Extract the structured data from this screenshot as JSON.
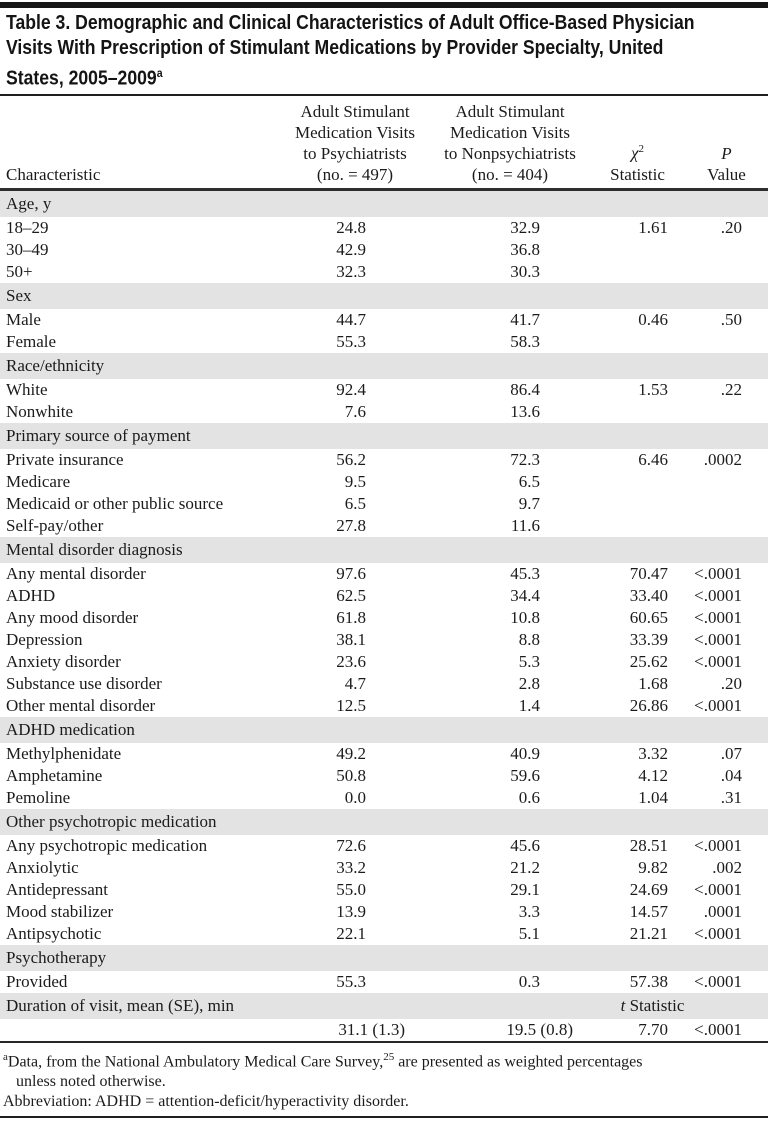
{
  "table": {
    "title_lines": [
      "Table 3. Demographic and Clinical Characteristics of Adult Office-Based Physician",
      "Visits With Prescription of Stimulant Medications by Provider Specialty, United",
      "States, 2005–2009"
    ],
    "title_footnote_marker": "a",
    "columns": {
      "characteristic": "Characteristic",
      "psychiatrists_lines": [
        "Adult Stimulant",
        "Medication Visits",
        "to Psychiatrists",
        "(no. = 497)"
      ],
      "nonpsychiatrists_lines": [
        "Adult Stimulant",
        "Medication Visits",
        "to Nonpsychiatrists",
        "(no. = 404)"
      ],
      "chi_symbol": "χ",
      "chi_sup": "2",
      "chi_line2": "Statistic",
      "p_symbol": "P",
      "p_line2": "Value"
    },
    "sections": [
      {
        "header": "Age, y",
        "rows": [
          {
            "label": "18–29",
            "psychiatrists": "24.8",
            "nonpsychiatrists": "32.9",
            "statistic": "1.61",
            "p_value": ".20"
          },
          {
            "label": "30–49",
            "psychiatrists": "42.9",
            "nonpsychiatrists": "36.8",
            "statistic": "",
            "p_value": ""
          },
          {
            "label": "50+",
            "psychiatrists": "32.3",
            "nonpsychiatrists": "30.3",
            "statistic": "",
            "p_value": ""
          }
        ]
      },
      {
        "header": "Sex",
        "rows": [
          {
            "label": "Male",
            "psychiatrists": "44.7",
            "nonpsychiatrists": "41.7",
            "statistic": "0.46",
            "p_value": ".50"
          },
          {
            "label": "Female",
            "psychiatrists": "55.3",
            "nonpsychiatrists": "58.3",
            "statistic": "",
            "p_value": ""
          }
        ]
      },
      {
        "header": "Race/ethnicity",
        "rows": [
          {
            "label": "White",
            "psychiatrists": "92.4",
            "nonpsychiatrists": "86.4",
            "statistic": "1.53",
            "p_value": ".22"
          },
          {
            "label": "Nonwhite",
            "psychiatrists": "7.6",
            "nonpsychiatrists": "13.6",
            "statistic": "",
            "p_value": ""
          }
        ]
      },
      {
        "header": "Primary source of payment",
        "rows": [
          {
            "label": "Private insurance",
            "psychiatrists": "56.2",
            "nonpsychiatrists": "72.3",
            "statistic": "6.46",
            "p_value": ".0002"
          },
          {
            "label": "Medicare",
            "psychiatrists": "9.5",
            "nonpsychiatrists": "6.5",
            "statistic": "",
            "p_value": ""
          },
          {
            "label": "Medicaid or other public source",
            "psychiatrists": "6.5",
            "nonpsychiatrists": "9.7",
            "statistic": "",
            "p_value": ""
          },
          {
            "label": "Self-pay/other",
            "psychiatrists": "27.8",
            "nonpsychiatrists": "11.6",
            "statistic": "",
            "p_value": ""
          }
        ]
      },
      {
        "header": "Mental disorder diagnosis",
        "rows": [
          {
            "label": "Any mental disorder",
            "psychiatrists": "97.6",
            "nonpsychiatrists": "45.3",
            "statistic": "70.47",
            "p_value": "<.0001"
          },
          {
            "label": "ADHD",
            "psychiatrists": "62.5",
            "nonpsychiatrists": "34.4",
            "statistic": "33.40",
            "p_value": "<.0001"
          },
          {
            "label": "Any mood disorder",
            "psychiatrists": "61.8",
            "nonpsychiatrists": "10.8",
            "statistic": "60.65",
            "p_value": "<.0001"
          },
          {
            "label": "Depression",
            "psychiatrists": "38.1",
            "nonpsychiatrists": "8.8",
            "statistic": "33.39",
            "p_value": "<.0001"
          },
          {
            "label": "Anxiety disorder",
            "psychiatrists": "23.6",
            "nonpsychiatrists": "5.3",
            "statistic": "25.62",
            "p_value": "<.0001"
          },
          {
            "label": "Substance use disorder",
            "psychiatrists": "4.7",
            "nonpsychiatrists": "2.8",
            "statistic": "1.68",
            "p_value": ".20"
          },
          {
            "label": "Other mental disorder",
            "psychiatrists": "12.5",
            "nonpsychiatrists": "1.4",
            "statistic": "26.86",
            "p_value": "<.0001"
          }
        ]
      },
      {
        "header": "ADHD medication",
        "rows": [
          {
            "label": "Methylphenidate",
            "psychiatrists": "49.2",
            "nonpsychiatrists": "40.9",
            "statistic": "3.32",
            "p_value": ".07"
          },
          {
            "label": "Amphetamine",
            "psychiatrists": "50.8",
            "nonpsychiatrists": "59.6",
            "statistic": "4.12",
            "p_value": ".04"
          },
          {
            "label": "Pemoline",
            "psychiatrists": "0.0",
            "nonpsychiatrists": "0.6",
            "statistic": "1.04",
            "p_value": ".31"
          }
        ]
      },
      {
        "header": "Other psychotropic medication",
        "rows": [
          {
            "label": "Any psychotropic medication",
            "psychiatrists": "72.6",
            "nonpsychiatrists": "45.6",
            "statistic": "28.51",
            "p_value": "<.0001"
          },
          {
            "label": "Anxiolytic",
            "psychiatrists": "33.2",
            "nonpsychiatrists": "21.2",
            "statistic": "9.82",
            "p_value": ".002"
          },
          {
            "label": "Antidepressant",
            "psychiatrists": "55.0",
            "nonpsychiatrists": "29.1",
            "statistic": "24.69",
            "p_value": "<.0001"
          },
          {
            "label": "Mood stabilizer",
            "psychiatrists": "13.9",
            "nonpsychiatrists": "3.3",
            "statistic": "14.57",
            "p_value": ".0001"
          },
          {
            "label": "Antipsychotic",
            "psychiatrists": "22.1",
            "nonpsychiatrists": "5.1",
            "statistic": "21.21",
            "p_value": "<.0001"
          }
        ]
      },
      {
        "header": "Psychotherapy",
        "rows": [
          {
            "label": "Provided",
            "psychiatrists": "55.3",
            "nonpsychiatrists": "0.3",
            "statistic": "57.38",
            "p_value": "<.0001"
          }
        ]
      },
      {
        "header": "Duration of visit, mean (SE), min",
        "stat_label_italic": "t",
        "stat_label_rest": " Statistic",
        "rows": [
          {
            "label": "",
            "psychiatrists": "31.1 (1.3)",
            "nonpsychiatrists": "19.5 (0.8)",
            "statistic": "7.70",
            "p_value": "<.0001"
          }
        ]
      }
    ],
    "footnotes": {
      "marker": "a",
      "line1_pre": "Data, from the National Ambulatory Medical Care Survey,",
      "line1_sup": "25",
      "line1_post": " are presented as weighted percentages",
      "line2": "unless noted otherwise.",
      "abbreviation": "Abbreviation: ADHD = attention-deficit/hyperactivity disorder."
    }
  }
}
